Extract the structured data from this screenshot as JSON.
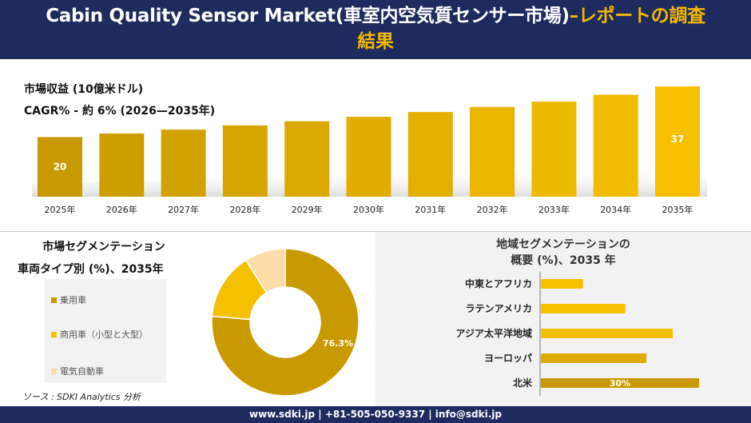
{
  "header": {
    "title_main": "Cabin Quality Sensor Market(車室内空気質センサー市場)",
    "title_dash": "–",
    "title_accent_1": "レポートの調査",
    "title_accent_2": "結果"
  },
  "revenue": {
    "title": "市場収益 (10億米ドル)",
    "cagr": "CAGR% - 約 6% (2026—2035年)"
  },
  "segment": {
    "title": "市場セグメンテーション",
    "subtitle": "車両タイプ別 (%)、2035年",
    "legend": [
      "乗用車",
      "商用車（小型と大型）",
      "電気自動車"
    ]
  },
  "region": {
    "title_line1": "地域セグメンテーションの",
    "title_line2": "概要 (%)、2035 年"
  },
  "source": "ソース : SDKI Analytics 分析",
  "footer": "www.sdki.jp | +81-505-050-9337 | info@sdki.jp",
  "colors": {
    "header_bg": "#1d2b5e",
    "accent": "#f5b800",
    "bar_dark": "#c99a00",
    "bar_light": "#f6c000",
    "passenger": "#c99a00",
    "commercial": "#f5c000",
    "ev": "#fddcaa"
  },
  "chart_data": [
    {
      "type": "bar",
      "title": "市場収益 (10億米ドル)",
      "categories": [
        "2025年",
        "2026年",
        "2027年",
        "2028年",
        "2029年",
        "2030年",
        "2031年",
        "2032年",
        "2033年",
        "2034年",
        "2035年"
      ],
      "values": [
        20,
        21.2,
        22.5,
        23.9,
        25.3,
        26.8,
        28.4,
        30.1,
        31.9,
        34.2,
        37
      ],
      "data_labels": [
        "20",
        "",
        "",
        "",
        "",
        "",
        "",
        "",
        "",
        "",
        "37"
      ],
      "ylim": [
        0,
        37
      ]
    },
    {
      "type": "pie",
      "title": "車両タイプ別 (%)、2035年",
      "categories": [
        "乗用車",
        "商用車（小型と大型）",
        "電気自動車"
      ],
      "values": [
        76.3,
        14.7,
        9.0
      ],
      "data_labels": [
        "76.3%",
        "",
        ""
      ]
    },
    {
      "type": "bar",
      "orientation": "horizontal",
      "title": "地域セグメンテーションの概要 (%)、2035 年",
      "categories": [
        "中東とアフリカ",
        "ラテンアメリカ",
        "アジア太平洋地域",
        "ヨーロッパ",
        "北米"
      ],
      "values": [
        8,
        16,
        25,
        20,
        30
      ],
      "data_labels": [
        "",
        "",
        "",
        "",
        "30%"
      ],
      "xlim": [
        0,
        30
      ]
    }
  ]
}
